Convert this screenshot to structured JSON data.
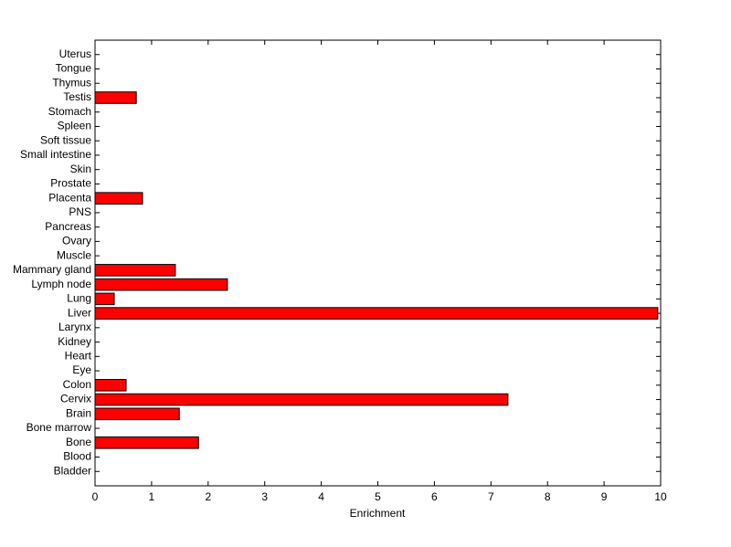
{
  "chart_data": {
    "type": "bar",
    "orientation": "horizontal",
    "xlabel": "Enrichment",
    "categories": [
      "Bladder",
      "Blood",
      "Bone",
      "Bone marrow",
      "Brain",
      "Cervix",
      "Colon",
      "Eye",
      "Heart",
      "Kidney",
      "Larynx",
      "Liver",
      "Lung",
      "Lymph node",
      "Mammary gland",
      "Muscle",
      "Ovary",
      "Pancreas",
      "PNS",
      "Placenta",
      "Prostate",
      "Skin",
      "Small intestine",
      "Soft tissue",
      "Spleen",
      "Stomach",
      "Testis",
      "Thymus",
      "Tongue",
      "Uterus"
    ],
    "values": [
      0,
      0,
      1.83,
      0,
      1.49,
      7.3,
      0.55,
      0,
      0,
      0,
      0,
      9.95,
      0.34,
      2.34,
      1.42,
      0,
      0,
      0,
      0,
      0.84,
      0,
      0,
      0,
      0,
      0,
      0,
      0.73,
      0,
      0,
      0
    ],
    "color": "#ff0000",
    "xlim": [
      0,
      10
    ],
    "xticks": [
      0,
      1,
      2,
      3,
      4,
      5,
      6,
      7,
      8,
      9,
      10
    ],
    "grid": false
  }
}
